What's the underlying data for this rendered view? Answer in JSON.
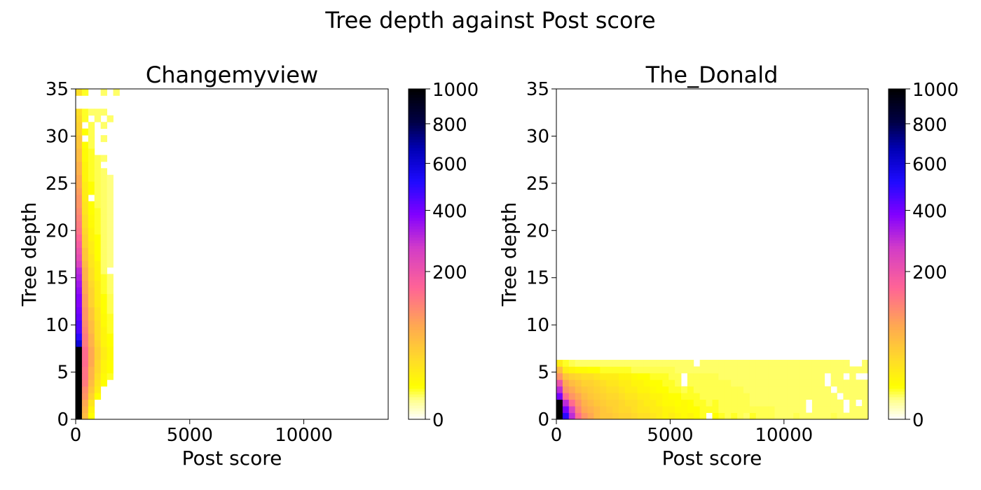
{
  "figure": {
    "suptitle": "Tree depth against Post score"
  },
  "chart_data": [
    {
      "type": "heatmap",
      "title": "Changemyview",
      "xlabel": "Post score",
      "ylabel": "Tree depth",
      "xlim": [
        0,
        13700
      ],
      "ylim": [
        0,
        35
      ],
      "x_ticks": [
        0,
        5000,
        10000
      ],
      "x_tick_labels": [
        "0",
        "5000",
        "10000"
      ],
      "y_ticks": [
        0,
        5,
        10,
        15,
        20,
        25,
        30,
        35
      ],
      "y_tick_labels": [
        "0",
        "5",
        "10",
        "15",
        "20",
        "25",
        "30",
        "35"
      ],
      "cell_width": 274,
      "cell_height": 0.7,
      "colorbar": {
        "ticks": [
          0,
          200,
          400,
          600,
          800,
          1000
        ],
        "tick_labels": [
          "0",
          "200",
          "400",
          "600",
          "800",
          "1000"
        ],
        "cmap": "gnuplot2_r"
      },
      "rows": [
        {
          "y": 0.0,
          "c": [
            1000,
            60,
            10
          ]
        },
        {
          "y": 0.7,
          "c": [
            1000,
            70,
            15
          ]
        },
        {
          "y": 1.4,
          "c": [
            1000,
            80,
            25
          ]
        },
        {
          "y": 2.1,
          "c": [
            1000,
            100,
            40,
            10
          ]
        },
        {
          "y": 2.8,
          "c": [
            1000,
            110,
            50,
            20
          ]
        },
        {
          "y": 3.5,
          "c": [
            1000,
            130,
            60,
            25,
            10
          ]
        },
        {
          "y": 4.2,
          "c": [
            1000,
            140,
            70,
            30,
            12,
            8
          ]
        },
        {
          "y": 4.9,
          "c": [
            1000,
            140,
            70,
            35,
            15,
            10
          ]
        },
        {
          "y": 5.6,
          "c": [
            1000,
            150,
            80,
            35,
            15,
            10
          ]
        },
        {
          "y": 6.3,
          "c": [
            1000,
            150,
            80,
            40,
            20,
            12
          ]
        },
        {
          "y": 7.0,
          "c": [
            1000,
            150,
            80,
            40,
            20,
            12
          ]
        },
        {
          "y": 7.7,
          "c": [
            600,
            130,
            70,
            35,
            15,
            10
          ]
        },
        {
          "y": 8.4,
          "c": [
            500,
            130,
            70,
            30,
            15,
            10
          ]
        },
        {
          "y": 9.1,
          "c": [
            450,
            120,
            60,
            30,
            15,
            8
          ]
        },
        {
          "y": 9.8,
          "c": [
            450,
            110,
            60,
            30,
            12,
            8
          ]
        },
        {
          "y": 10.5,
          "c": [
            420,
            100,
            50,
            25,
            12,
            8
          ]
        },
        {
          "y": 11.2,
          "c": [
            400,
            100,
            50,
            25,
            10,
            6
          ]
        },
        {
          "y": 11.9,
          "c": [
            380,
            90,
            40,
            20,
            10,
            6
          ]
        },
        {
          "y": 12.6,
          "c": [
            380,
            90,
            40,
            20,
            10,
            6
          ]
        },
        {
          "y": 13.3,
          "c": [
            360,
            80,
            40,
            20,
            8,
            5
          ]
        },
        {
          "y": 14.0,
          "c": [
            340,
            80,
            35,
            20,
            8,
            5
          ]
        },
        {
          "y": 14.7,
          "c": [
            320,
            70,
            30,
            15,
            8,
            5
          ]
        },
        {
          "y": 15.4,
          "c": [
            300,
            70,
            30,
            15,
            5,
            0
          ]
        },
        {
          "y": 16.1,
          "c": [
            250,
            60,
            25,
            15,
            5,
            4
          ]
        },
        {
          "y": 16.8,
          "c": [
            220,
            50,
            25,
            10,
            5,
            4
          ]
        },
        {
          "y": 17.5,
          "c": [
            200,
            50,
            20,
            10,
            5,
            4
          ]
        },
        {
          "y": 18.2,
          "c": [
            180,
            40,
            20,
            10,
            5,
            4
          ]
        },
        {
          "y": 18.9,
          "c": [
            160,
            40,
            15,
            10,
            5,
            4
          ]
        },
        {
          "y": 19.6,
          "c": [
            140,
            35,
            15,
            8,
            5,
            4
          ]
        },
        {
          "y": 20.3,
          "c": [
            130,
            30,
            12,
            8,
            5,
            4
          ]
        },
        {
          "y": 21.0,
          "c": [
            120,
            30,
            12,
            8,
            5,
            4
          ]
        },
        {
          "y": 21.7,
          "c": [
            110,
            25,
            10,
            8,
            5,
            4
          ]
        },
        {
          "y": 22.4,
          "c": [
            100,
            25,
            10,
            6,
            5,
            4
          ]
        },
        {
          "y": 23.1,
          "c": [
            100,
            20,
            0,
            6,
            5,
            4
          ]
        },
        {
          "y": 23.8,
          "c": [
            90,
            20,
            10,
            6,
            5,
            4
          ]
        },
        {
          "y": 24.5,
          "c": [
            80,
            20,
            10,
            6,
            5,
            4
          ]
        },
        {
          "y": 25.2,
          "c": [
            80,
            15,
            8,
            6,
            5,
            4
          ]
        },
        {
          "y": 25.9,
          "c": [
            70,
            15,
            8,
            6,
            5
          ]
        },
        {
          "y": 26.6,
          "c": [
            70,
            15,
            8,
            6
          ]
        },
        {
          "y": 27.3,
          "c": [
            60,
            12,
            8,
            6,
            5
          ]
        },
        {
          "y": 28.0,
          "c": [
            60,
            12,
            8
          ]
        },
        {
          "y": 28.7,
          "c": [
            50,
            10,
            6
          ]
        },
        {
          "y": 29.4,
          "c": [
            50,
            0,
            6,
            0,
            5
          ]
        },
        {
          "y": 30.1,
          "c": [
            40,
            10,
            6
          ]
        },
        {
          "y": 30.8,
          "c": [
            40,
            0,
            6,
            0,
            5
          ]
        },
        {
          "y": 31.5,
          "c": [
            35,
            8,
            0,
            5,
            0,
            5
          ]
        },
        {
          "y": 32.2,
          "c": [
            30,
            8,
            5,
            5,
            5
          ]
        },
        {
          "y": 34.3,
          "c": [
            30,
            8,
            0,
            0,
            5,
            0,
            5
          ]
        }
      ]
    },
    {
      "type": "heatmap",
      "title": "The_Donald",
      "xlabel": "Post score",
      "ylabel": "Tree depth",
      "xlim": [
        0,
        13700
      ],
      "ylim": [
        0,
        35
      ],
      "x_ticks": [
        0,
        5000,
        10000
      ],
      "x_tick_labels": [
        "0",
        "5000",
        "10000"
      ],
      "y_ticks": [
        0,
        5,
        10,
        15,
        20,
        25,
        30,
        35
      ],
      "y_tick_labels": [
        "0",
        "5",
        "10",
        "15",
        "20",
        "25",
        "30",
        "35"
      ],
      "cell_width": 274,
      "cell_height": 0.7,
      "colorbar": {
        "ticks": [
          0,
          200,
          400,
          600,
          800,
          1000
        ],
        "tick_labels": [
          "0",
          "200",
          "400",
          "600",
          "800",
          "1000"
        ],
        "cmap": "gnuplot2_r"
      },
      "rows": [
        {
          "y": 0.0,
          "c": [
            1000,
            500,
            300,
            150,
            100,
            80,
            60,
            50,
            50,
            45,
            40,
            40,
            35,
            30,
            30,
            25,
            20,
            15,
            20,
            15,
            12,
            15,
            10,
            8,
            0,
            10,
            8,
            6,
            8,
            6,
            5,
            8,
            6,
            6,
            6,
            5,
            5,
            5,
            6,
            5,
            5,
            5,
            5,
            5,
            6,
            5,
            5,
            5,
            5,
            5
          ]
        },
        {
          "y": 0.7,
          "c": [
            1000,
            400,
            250,
            120,
            80,
            70,
            60,
            50,
            45,
            40,
            35,
            35,
            30,
            25,
            25,
            20,
            20,
            15,
            15,
            12,
            12,
            10,
            10,
            8,
            8,
            8,
            6,
            6,
            6,
            6,
            6,
            6,
            6,
            6,
            6,
            5,
            5,
            5,
            5,
            5,
            0,
            5,
            5,
            5,
            5,
            5,
            0,
            5,
            5,
            5
          ]
        },
        {
          "y": 1.4,
          "c": [
            1000,
            300,
            150,
            100,
            70,
            60,
            50,
            45,
            40,
            40,
            35,
            30,
            30,
            25,
            20,
            20,
            15,
            12,
            12,
            10,
            12,
            10,
            8,
            8,
            6,
            8,
            6,
            6,
            6,
            6,
            6,
            5,
            5,
            5,
            5,
            5,
            5,
            5,
            5,
            5,
            0,
            5,
            5,
            5,
            5,
            5,
            0,
            5,
            0,
            5
          ]
        },
        {
          "y": 2.1,
          "c": [
            400,
            150,
            100,
            80,
            60,
            50,
            45,
            40,
            35,
            35,
            30,
            25,
            25,
            20,
            20,
            15,
            15,
            12,
            10,
            10,
            8,
            8,
            8,
            6,
            6,
            6,
            6,
            6,
            6,
            6,
            6,
            5,
            5,
            5,
            5,
            5,
            5,
            5,
            5,
            5,
            5,
            5,
            5,
            5,
            5,
            0,
            5,
            5,
            5,
            5
          ]
        },
        {
          "y": 2.8,
          "c": [
            300,
            100,
            80,
            60,
            50,
            45,
            40,
            35,
            30,
            30,
            25,
            20,
            20,
            15,
            15,
            12,
            10,
            10,
            8,
            8,
            6,
            8,
            6,
            6,
            6,
            6,
            6,
            6,
            6,
            6,
            5,
            5,
            5,
            5,
            5,
            5,
            5,
            5,
            5,
            5,
            5,
            5,
            5,
            5,
            0,
            5,
            5,
            5,
            5,
            5
          ]
        },
        {
          "y": 3.5,
          "c": [
            200,
            80,
            60,
            50,
            40,
            40,
            35,
            30,
            25,
            25,
            20,
            20,
            15,
            15,
            12,
            10,
            10,
            8,
            8,
            6,
            0,
            6,
            6,
            6,
            6,
            6,
            6,
            6,
            5,
            5,
            5,
            5,
            5,
            5,
            5,
            5,
            5,
            5,
            5,
            5,
            5,
            5,
            5,
            0,
            5,
            5,
            5,
            5,
            5,
            5
          ]
        },
        {
          "y": 4.2,
          "c": [
            100,
            50,
            40,
            35,
            30,
            30,
            25,
            20,
            20,
            20,
            15,
            15,
            12,
            10,
            10,
            8,
            8,
            8,
            6,
            6,
            0,
            6,
            6,
            6,
            6,
            6,
            5,
            5,
            5,
            5,
            5,
            5,
            5,
            5,
            5,
            5,
            5,
            5,
            5,
            5,
            5,
            5,
            5,
            0,
            5,
            5,
            0,
            5,
            0,
            0
          ]
        },
        {
          "y": 4.9,
          "c": [
            60,
            20,
            15,
            12,
            12,
            10,
            10,
            8,
            8,
            8,
            8,
            8,
            6,
            6,
            6,
            6,
            6,
            6,
            6,
            5,
            5,
            5,
            5,
            5,
            5,
            5,
            5,
            5,
            5,
            5,
            5,
            5,
            5,
            5,
            5,
            5,
            5,
            5,
            5,
            5,
            5,
            5,
            5,
            5,
            5,
            5,
            5,
            5,
            5,
            5
          ]
        },
        {
          "y": 5.6,
          "c": [
            20,
            8,
            6,
            5,
            5,
            5,
            5,
            5,
            5,
            5,
            5,
            5,
            5,
            5,
            5,
            5,
            5,
            5,
            5,
            5,
            5,
            5,
            0,
            5,
            5,
            5,
            5,
            5,
            5,
            5,
            5,
            5,
            5,
            5,
            5,
            5,
            5,
            5,
            5,
            5,
            5,
            5,
            5,
            5,
            5,
            5,
            5,
            0,
            0,
            5
          ]
        }
      ]
    }
  ]
}
